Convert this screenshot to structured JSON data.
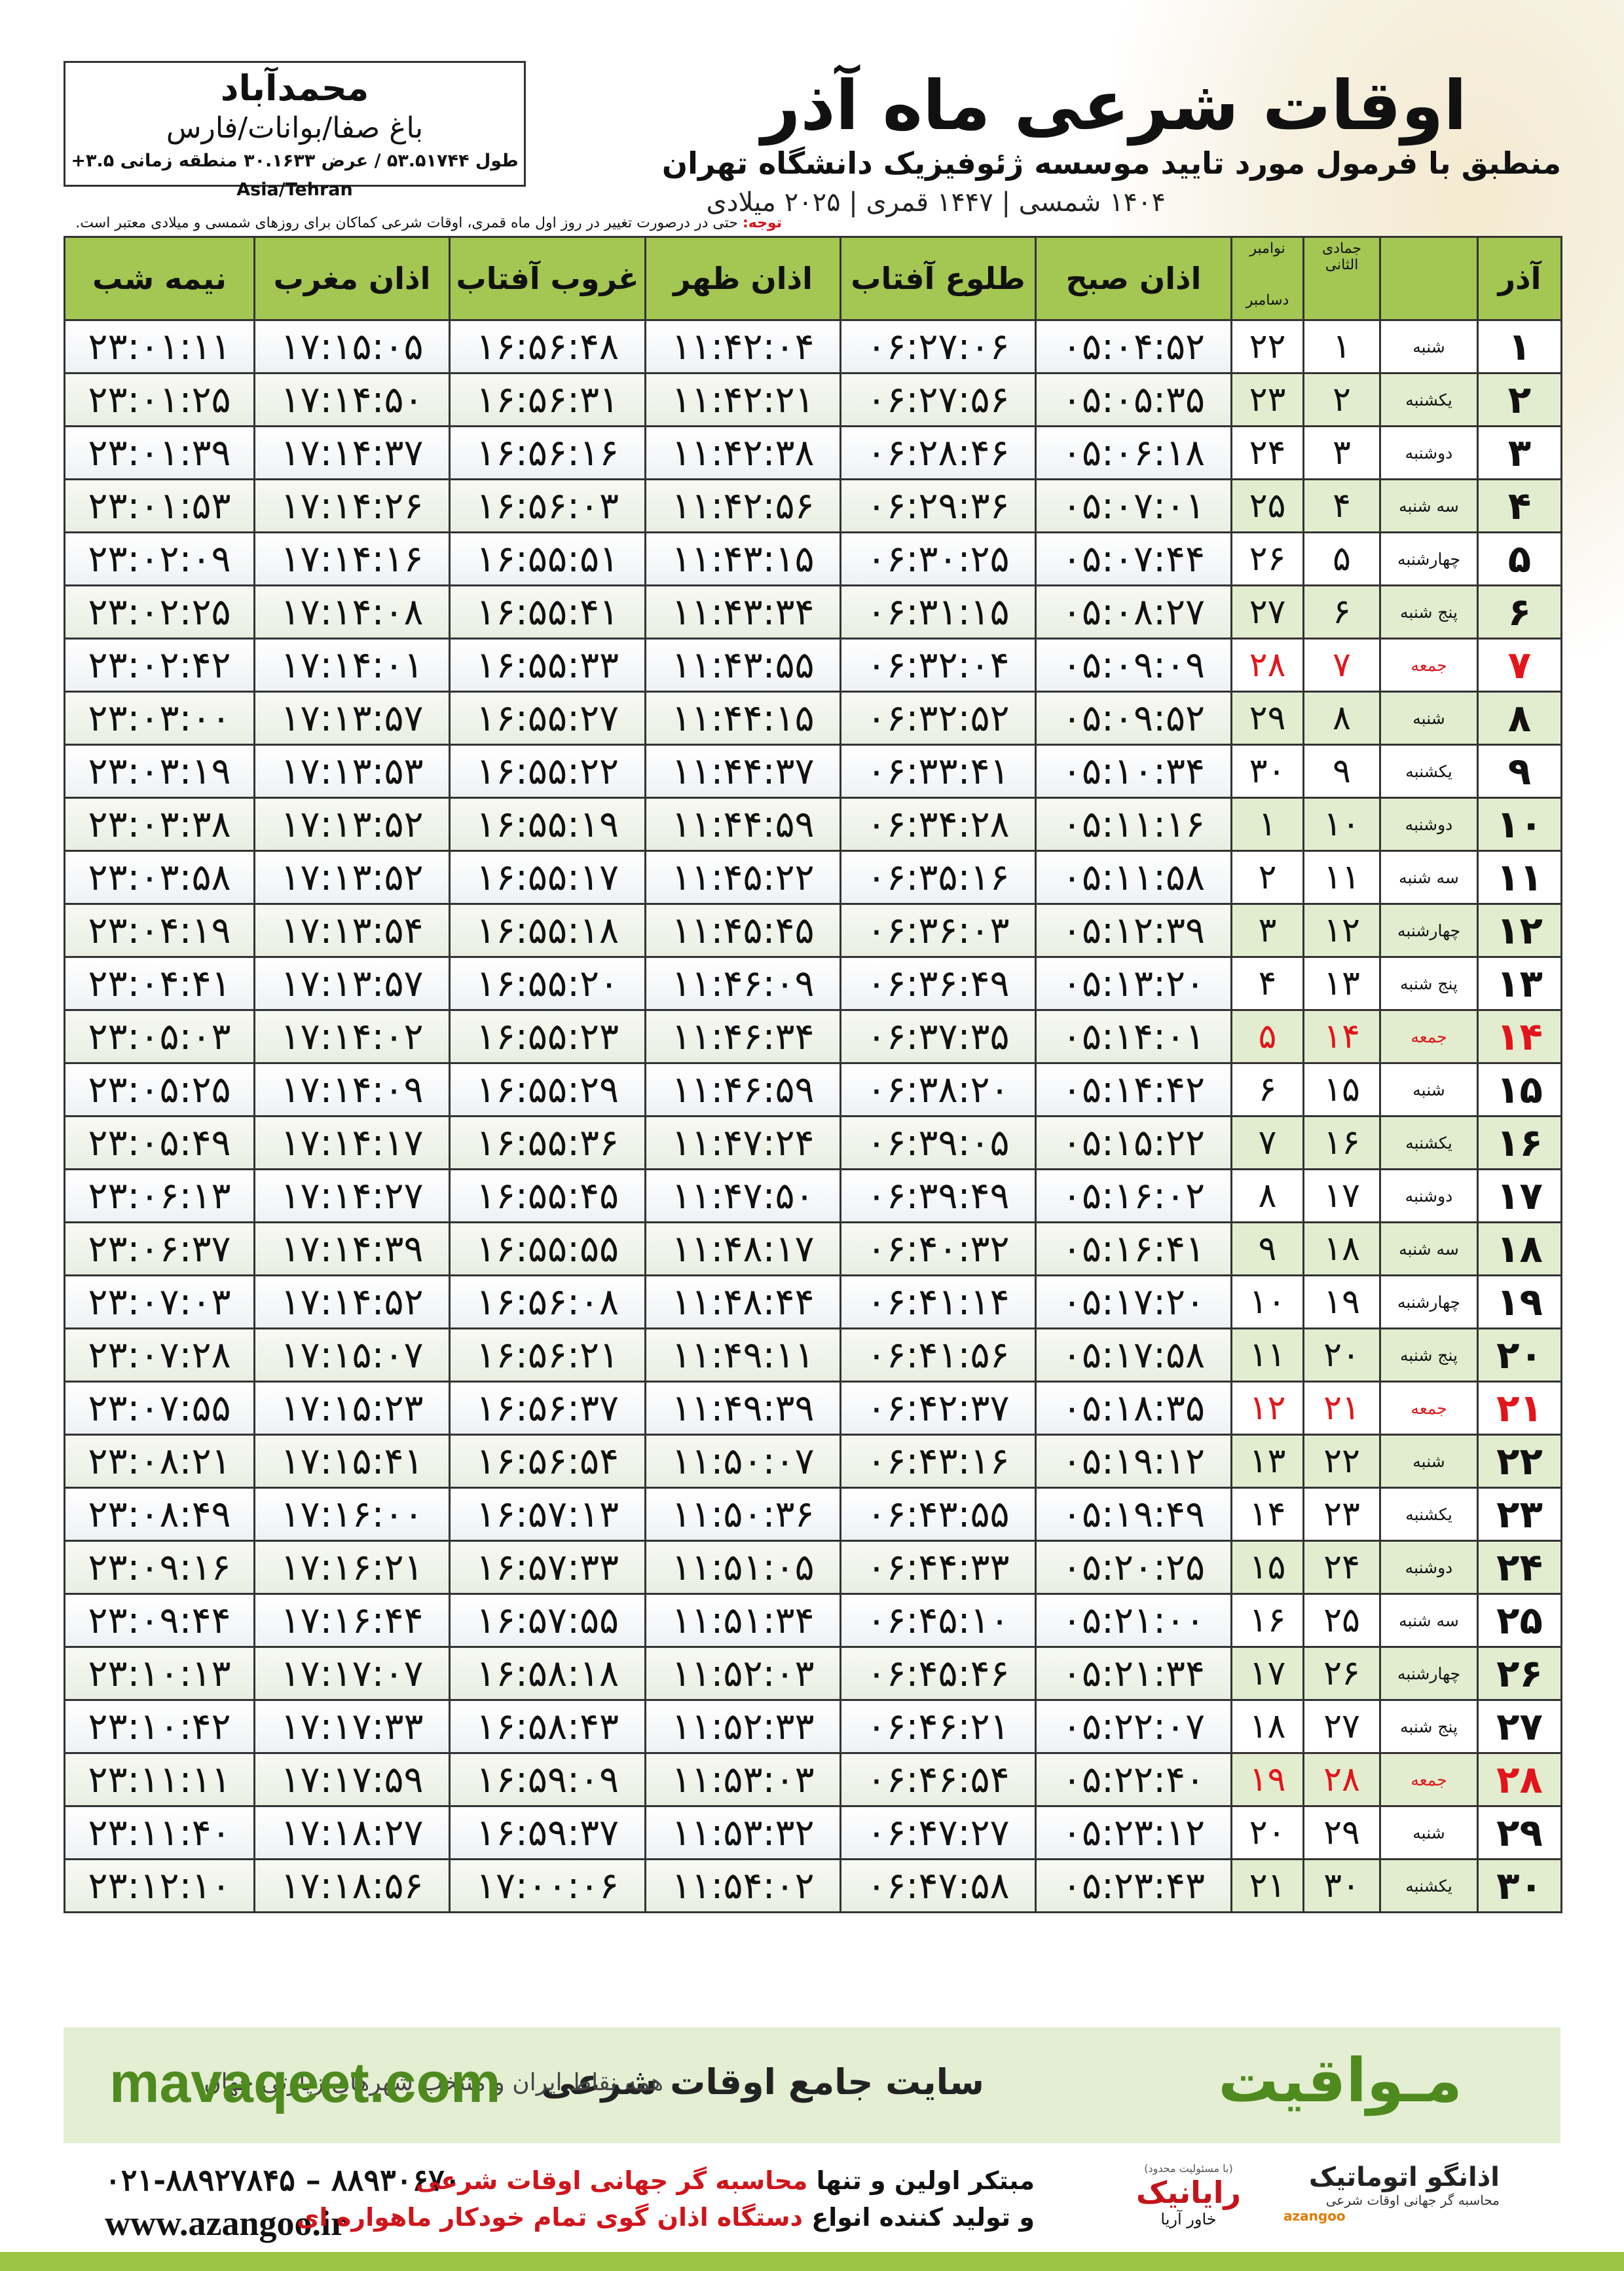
{
  "header": {
    "title": "اوقات شرعی ماه آذر",
    "subtitle": "منطبق با فرمول مورد تایید موسسه ژئوفیزیک دانشگاه تهران",
    "dates": "۱۴۰۴ شمسی | ۱۴۴۷ قمری | ۲۰۲۵ میلادی"
  },
  "location": {
    "city": "محمدآباد",
    "region": "باغ صفا/بوانات/فارس",
    "coords": "طول ۵۳.۵۱۷۴۴ / عرض ۳۰.۱۶۳۳ منطقه زمانی ۳.۵+ Asia/Tehran"
  },
  "note": {
    "label": "توجه:",
    "text": "حتی در درصورت تغییر در روز اول ماه قمری، اوقات شرعی کماکان برای روزهای شمسی و میلادی معتبر است."
  },
  "table": {
    "headers": [
      "آذر",
      "",
      "جمادی الثانی",
      [
        "نوامبر",
        "دسامبر"
      ],
      "اذان صبح",
      "طلوع آفتاب",
      "اذان ظهر",
      "غروب آفتاب",
      "اذان مغرب",
      "نیمه شب"
    ],
    "rows": [
      {
        "cells": [
          "۱",
          "شنبه",
          "۱",
          "۲۲",
          "۰۵:۰۴:۵۲",
          "۰۶:۲۷:۰۶",
          "۱۱:۴۲:۰۴",
          "۱۶:۵۶:۴۸",
          "۱۷:۱۵:۰۵",
          "۲۳:۰۱:۱۱"
        ]
      },
      {
        "cells": [
          "۲",
          "یکشنبه",
          "۲",
          "۲۳",
          "۰۵:۰۵:۳۵",
          "۰۶:۲۷:۵۶",
          "۱۱:۴۲:۲۱",
          "۱۶:۵۶:۳۱",
          "۱۷:۱۴:۵۰",
          "۲۳:۰۱:۲۵"
        ]
      },
      {
        "cells": [
          "۳",
          "دوشنبه",
          "۳",
          "۲۴",
          "۰۵:۰۶:۱۸",
          "۰۶:۲۸:۴۶",
          "۱۱:۴۲:۳۸",
          "۱۶:۵۶:۱۶",
          "۱۷:۱۴:۳۷",
          "۲۳:۰۱:۳۹"
        ]
      },
      {
        "cells": [
          "۴",
          "سه شنبه",
          "۴",
          "۲۵",
          "۰۵:۰۷:۰۱",
          "۰۶:۲۹:۳۶",
          "۱۱:۴۲:۵۶",
          "۱۶:۵۶:۰۳",
          "۱۷:۱۴:۲۶",
          "۲۳:۰۱:۵۳"
        ]
      },
      {
        "cells": [
          "۵",
          "چهارشنبه",
          "۵",
          "۲۶",
          "۰۵:۰۷:۴۴",
          "۰۶:۳۰:۲۵",
          "۱۱:۴۳:۱۵",
          "۱۶:۵۵:۵۱",
          "۱۷:۱۴:۱۶",
          "۲۳:۰۲:۰۹"
        ]
      },
      {
        "cells": [
          "۶",
          "پنج شنبه",
          "۶",
          "۲۷",
          "۰۵:۰۸:۲۷",
          "۰۶:۳۱:۱۵",
          "۱۱:۴۳:۳۴",
          "۱۶:۵۵:۴۱",
          "۱۷:۱۴:۰۸",
          "۲۳:۰۲:۲۵"
        ]
      },
      {
        "cells": [
          "۷",
          "جمعه",
          "۷",
          "۲۸",
          "۰۵:۰۹:۰۹",
          "۰۶:۳۲:۰۴",
          "۱۱:۴۳:۵۵",
          "۱۶:۵۵:۳۳",
          "۱۷:۱۴:۰۱",
          "۲۳:۰۲:۴۲"
        ],
        "color": "#e3141b"
      },
      {
        "cells": [
          "۸",
          "شنبه",
          "۸",
          "۲۹",
          "۰۵:۰۹:۵۲",
          "۰۶:۳۲:۵۲",
          "۱۱:۴۴:۱۵",
          "۱۶:۵۵:۲۷",
          "۱۷:۱۳:۵۷",
          "۲۳:۰۳:۰۰"
        ]
      },
      {
        "cells": [
          "۹",
          "یکشنبه",
          "۹",
          "۳۰",
          "۰۵:۱۰:۳۴",
          "۰۶:۳۳:۴۱",
          "۱۱:۴۴:۳۷",
          "۱۶:۵۵:۲۲",
          "۱۷:۱۳:۵۳",
          "۲۳:۰۳:۱۹"
        ]
      },
      {
        "cells": [
          "۱۰",
          "دوشنبه",
          "۱۰",
          "۱",
          "۰۵:۱۱:۱۶",
          "۰۶:۳۴:۲۸",
          "۱۱:۴۴:۵۹",
          "۱۶:۵۵:۱۹",
          "۱۷:۱۳:۵۲",
          "۲۳:۰۳:۳۸"
        ]
      },
      {
        "cells": [
          "۱۱",
          "سه شنبه",
          "۱۱",
          "۲",
          "۰۵:۱۱:۵۸",
          "۰۶:۳۵:۱۶",
          "۱۱:۴۵:۲۲",
          "۱۶:۵۵:۱۷",
          "۱۷:۱۳:۵۲",
          "۲۳:۰۳:۵۸"
        ]
      },
      {
        "cells": [
          "۱۲",
          "چهارشنبه",
          "۱۲",
          "۳",
          "۰۵:۱۲:۳۹",
          "۰۶:۳۶:۰۳",
          "۱۱:۴۵:۴۵",
          "۱۶:۵۵:۱۸",
          "۱۷:۱۳:۵۴",
          "۲۳:۰۴:۱۹"
        ]
      },
      {
        "cells": [
          "۱۳",
          "پنج شنبه",
          "۱۳",
          "۴",
          "۰۵:۱۳:۲۰",
          "۰۶:۳۶:۴۹",
          "۱۱:۴۶:۰۹",
          "۱۶:۵۵:۲۰",
          "۱۷:۱۳:۵۷",
          "۲۳:۰۴:۴۱"
        ]
      },
      {
        "cells": [
          "۱۴",
          "جمعه",
          "۱۴",
          "۵",
          "۰۵:۱۴:۰۱",
          "۰۶:۳۷:۳۵",
          "۱۱:۴۶:۳۴",
          "۱۶:۵۵:۲۳",
          "۱۷:۱۴:۰۲",
          "۲۳:۰۵:۰۳"
        ],
        "color": "#e3141b"
      },
      {
        "cells": [
          "۱۵",
          "شنبه",
          "۱۵",
          "۶",
          "۰۵:۱۴:۴۲",
          "۰۶:۳۸:۲۰",
          "۱۱:۴۶:۵۹",
          "۱۶:۵۵:۲۹",
          "۱۷:۱۴:۰۹",
          "۲۳:۰۵:۲۵"
        ]
      },
      {
        "cells": [
          "۱۶",
          "یکشنبه",
          "۱۶",
          "۷",
          "۰۵:۱۵:۲۲",
          "۰۶:۳۹:۰۵",
          "۱۱:۴۷:۲۴",
          "۱۶:۵۵:۳۶",
          "۱۷:۱۴:۱۷",
          "۲۳:۰۵:۴۹"
        ]
      },
      {
        "cells": [
          "۱۷",
          "دوشنبه",
          "۱۷",
          "۸",
          "۰۵:۱۶:۰۲",
          "۰۶:۳۹:۴۹",
          "۱۱:۴۷:۵۰",
          "۱۶:۵۵:۴۵",
          "۱۷:۱۴:۲۷",
          "۲۳:۰۶:۱۳"
        ]
      },
      {
        "cells": [
          "۱۸",
          "سه شنبه",
          "۱۸",
          "۹",
          "۰۵:۱۶:۴۱",
          "۰۶:۴۰:۳۲",
          "۱۱:۴۸:۱۷",
          "۱۶:۵۵:۵۵",
          "۱۷:۱۴:۳۹",
          "۲۳:۰۶:۳۷"
        ]
      },
      {
        "cells": [
          "۱۹",
          "چهارشنبه",
          "۱۹",
          "۱۰",
          "۰۵:۱۷:۲۰",
          "۰۶:۴۱:۱۴",
          "۱۱:۴۸:۴۴",
          "۱۶:۵۶:۰۸",
          "۱۷:۱۴:۵۲",
          "۲۳:۰۷:۰۳"
        ]
      },
      {
        "cells": [
          "۲۰",
          "پنج شنبه",
          "۲۰",
          "۱۱",
          "۰۵:۱۷:۵۸",
          "۰۶:۴۱:۵۶",
          "۱۱:۴۹:۱۱",
          "۱۶:۵۶:۲۱",
          "۱۷:۱۵:۰۷",
          "۲۳:۰۷:۲۸"
        ]
      },
      {
        "cells": [
          "۲۱",
          "جمعه",
          "۲۱",
          "۱۲",
          "۰۵:۱۸:۳۵",
          "۰۶:۴۲:۳۷",
          "۱۱:۴۹:۳۹",
          "۱۶:۵۶:۳۷",
          "۱۷:۱۵:۲۳",
          "۲۳:۰۷:۵۵"
        ],
        "color": "#e3141b"
      },
      {
        "cells": [
          "۲۲",
          "شنبه",
          "۲۲",
          "۱۳",
          "۰۵:۱۹:۱۲",
          "۰۶:۴۳:۱۶",
          "۱۱:۵۰:۰۷",
          "۱۶:۵۶:۵۴",
          "۱۷:۱۵:۴۱",
          "۲۳:۰۸:۲۱"
        ]
      },
      {
        "cells": [
          "۲۳",
          "یکشنبه",
          "۲۳",
          "۱۴",
          "۰۵:۱۹:۴۹",
          "۰۶:۴۳:۵۵",
          "۱۱:۵۰:۳۶",
          "۱۶:۵۷:۱۳",
          "۱۷:۱۶:۰۰",
          "۲۳:۰۸:۴۹"
        ]
      },
      {
        "cells": [
          "۲۴",
          "دوشنبه",
          "۲۴",
          "۱۵",
          "۰۵:۲۰:۲۵",
          "۰۶:۴۴:۳۳",
          "۱۱:۵۱:۰۵",
          "۱۶:۵۷:۳۳",
          "۱۷:۱۶:۲۱",
          "۲۳:۰۹:۱۶"
        ]
      },
      {
        "cells": [
          "۲۵",
          "سه شنبه",
          "۲۵",
          "۱۶",
          "۰۵:۲۱:۰۰",
          "۰۶:۴۵:۱۰",
          "۱۱:۵۱:۳۴",
          "۱۶:۵۷:۵۵",
          "۱۷:۱۶:۴۴",
          "۲۳:۰۹:۴۴"
        ]
      },
      {
        "cells": [
          "۲۶",
          "چهارشنبه",
          "۲۶",
          "۱۷",
          "۰۵:۲۱:۳۴",
          "۰۶:۴۵:۴۶",
          "۱۱:۵۲:۰۳",
          "۱۶:۵۸:۱۸",
          "۱۷:۱۷:۰۷",
          "۲۳:۱۰:۱۳"
        ]
      },
      {
        "cells": [
          "۲۷",
          "پنج شنبه",
          "۲۷",
          "۱۸",
          "۰۵:۲۲:۰۷",
          "۰۶:۴۶:۲۱",
          "۱۱:۵۲:۳۳",
          "۱۶:۵۸:۴۳",
          "۱۷:۱۷:۳۳",
          "۲۳:۱۰:۴۲"
        ]
      },
      {
        "cells": [
          "۲۸",
          "جمعه",
          "۲۸",
          "۱۹",
          "۰۵:۲۲:۴۰",
          "۰۶:۴۶:۵۴",
          "۱۱:۵۳:۰۳",
          "۱۶:۵۹:۰۹",
          "۱۷:۱۷:۵۹",
          "۲۳:۱۱:۱۱"
        ],
        "color": "#e3141b"
      },
      {
        "cells": [
          "۲۹",
          "شنبه",
          "۲۹",
          "۲۰",
          "۰۵:۲۳:۱۲",
          "۰۶:۴۷:۲۷",
          "۱۱:۵۳:۳۲",
          "۱۶:۵۹:۳۷",
          "۱۷:۱۸:۲۷",
          "۲۳:۱۱:۴۰"
        ]
      },
      {
        "cells": [
          "۳۰",
          "یکشنبه",
          "۳۰",
          "۲۱",
          "۰۵:۲۳:۴۳",
          "۰۶:۴۷:۵۸",
          "۱۱:۵۴:۰۲",
          "۱۷:۰۰:۰۶",
          "۱۷:۱۸:۵۶",
          "۲۳:۱۲:۱۰"
        ]
      }
    ]
  },
  "banner": {
    "brand": "مـواقیت",
    "slogan": "سایت جامع اوقات شرعی",
    "tagline": "همه نقاط ایران و منتخب شهرهای زیارتی جهان",
    "url": "mavaqeet.com"
  },
  "footer": {
    "phone": "۰۲۱-۸۸۹۲۷۸۴۵ – ۸۸۹۳۰۶۷۰",
    "website": "www.azangoo.ir",
    "line1": [
      "مبتکر اولین و تنها",
      "محاسبه گر جهانی اوقات شرعی"
    ],
    "line2": [
      "و تولید کننده انواع",
      "دستگاه اذان گوی تمام خودکار ماهواره ای"
    ],
    "logo1": {
      "name": "رایانیک",
      "sub": "خاور آریا",
      "note": "(با مسئولیت محدود)"
    },
    "logo2": {
      "name": "اذانگو اتوماتیک",
      "sub": "محاسبه گر جهانی اوقات شرعی",
      "mark": "azangoo"
    }
  }
}
